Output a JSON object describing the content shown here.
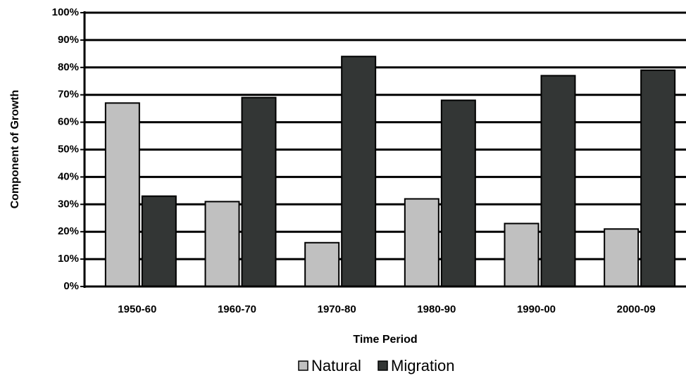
{
  "chart_data": {
    "type": "bar",
    "x_label": "Time Period",
    "y_label": "Component of Growth",
    "categories": [
      "1950-60",
      "1960-70",
      "1970-80",
      "1980-90",
      "1990-00",
      "2000-09"
    ],
    "series": [
      {
        "name": "Natural",
        "color": "#c0c0c0",
        "values": [
          67,
          31,
          16,
          32,
          23,
          21
        ]
      },
      {
        "name": "Migration",
        "color": "#333635",
        "values": [
          33,
          69,
          84,
          68,
          77,
          79
        ]
      }
    ],
    "ylim": [
      0,
      100
    ],
    "yticks": [
      {
        "value": 0,
        "label": "0%"
      },
      {
        "value": 10,
        "label": "10%"
      },
      {
        "value": 20,
        "label": "20%"
      },
      {
        "value": 30,
        "label": "30%"
      },
      {
        "value": 40,
        "label": "40%"
      },
      {
        "value": 50,
        "label": "50%"
      },
      {
        "value": 60,
        "label": "60%"
      },
      {
        "value": 70,
        "label": "70%"
      },
      {
        "value": 80,
        "label": "80%"
      },
      {
        "value": 90,
        "label": "90%"
      },
      {
        "value": 100,
        "label": "100%"
      }
    ],
    "grid": true,
    "legend": "bottom"
  }
}
